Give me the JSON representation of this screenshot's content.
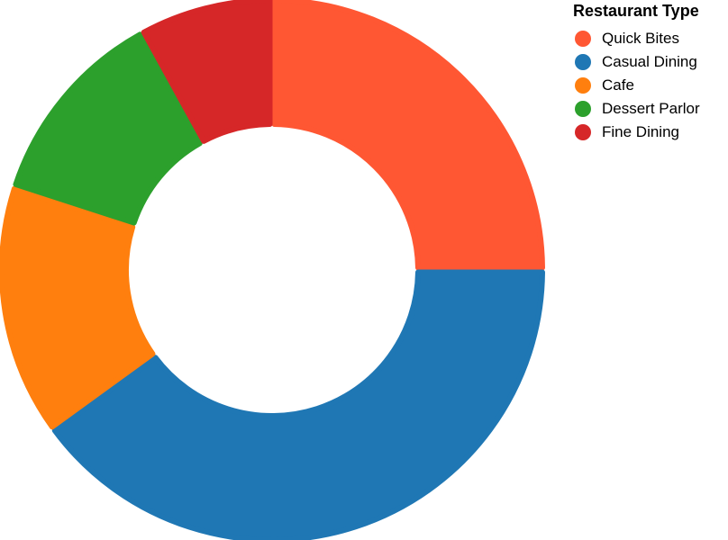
{
  "chart_data": {
    "type": "pie",
    "donut": true,
    "title": "",
    "legend": {
      "title": "Restaurant Type",
      "placement": "top-right"
    },
    "categories": [
      "Quick Bites",
      "Casual Dining",
      "Cafe",
      "Dessert Parlor",
      "Fine Dining"
    ],
    "values": [
      25,
      40,
      15,
      12,
      8
    ],
    "colors": [
      "#ff5733",
      "#1f77b4",
      "#ff7f0e",
      "#2ca02c",
      "#d62728"
    ],
    "start_angle_deg": 0,
    "direction": "clockwise"
  }
}
